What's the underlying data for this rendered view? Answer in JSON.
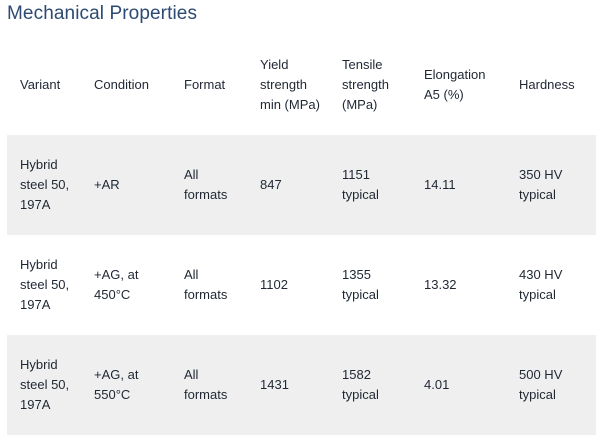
{
  "title": "Mechanical Properties",
  "table": {
    "headers": [
      "Variant",
      "Condition",
      "Format",
      "Yield strength min (MPa)",
      "Tensile strength (MPa)",
      "Elongation A5 (%)",
      "Hardness"
    ],
    "rows": [
      [
        "Hybrid steel 50, 197A",
        "+AR",
        "All formats",
        "847",
        "1151 typical",
        "14.11",
        "350 HV typical"
      ],
      [
        "Hybrid steel 50, 197A",
        "+AG, at 450°C",
        "All formats",
        "1102",
        "1355 typical",
        "13.32",
        "430 HV typical"
      ],
      [
        "Hybrid steel 50, 197A",
        "+AG, at 550°C",
        "All formats",
        "1431",
        "1582 typical",
        "4.01",
        "500 HV typical"
      ]
    ]
  },
  "colors": {
    "title": "#2c4a72",
    "text": "#1f2733",
    "row_shade": "#efefef",
    "background": "#ffffff"
  }
}
